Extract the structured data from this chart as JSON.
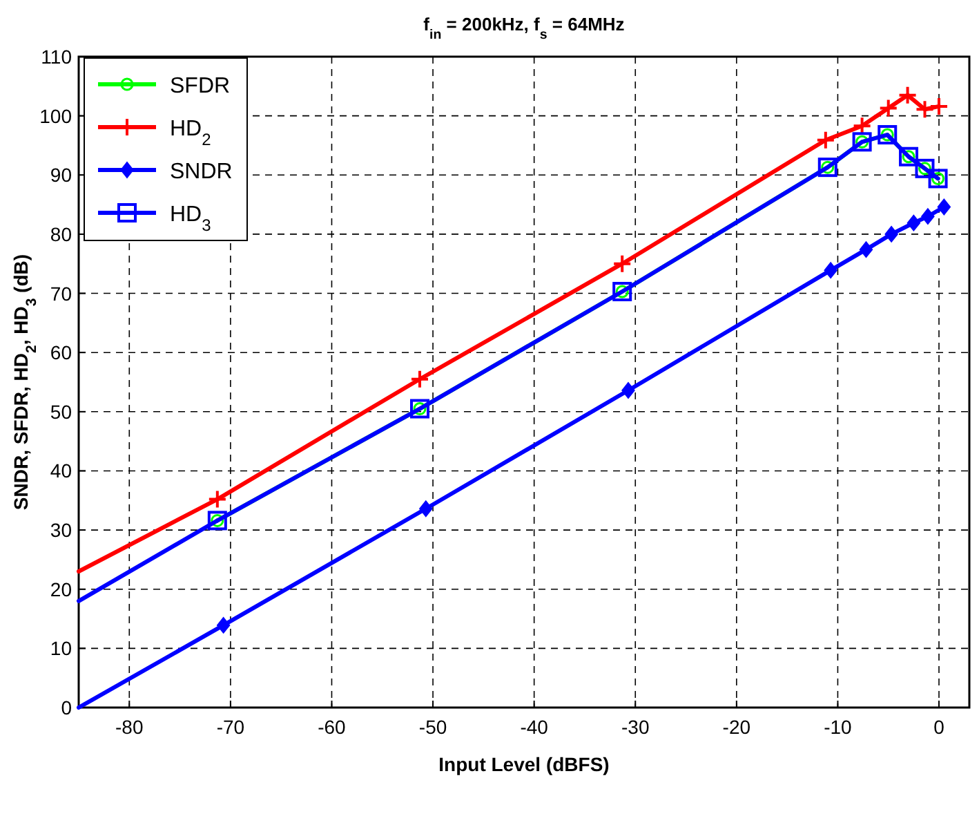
{
  "chart_data": {
    "type": "line",
    "title": "f$_{in}$ = 200kHz, f$_{s}$ = 64MHz",
    "xlabel": "Input Level (dBFS)",
    "ylabel": "SNDR, SFDR, HD$_{2}$, HD$_{3}$ (dB)",
    "xlim": [
      -85,
      3
    ],
    "xticks": [
      -80,
      -70,
      -60,
      -50,
      -40,
      -30,
      -20,
      -10,
      0
    ],
    "ylim": [
      0,
      110
    ],
    "yticks": [
      0,
      10,
      20,
      30,
      40,
      50,
      60,
      70,
      80,
      90,
      100,
      110
    ],
    "grid": true,
    "legend": "top left",
    "line_style": "solid",
    "series": [
      {
        "name": "SFDR",
        "color": "#00ff00",
        "marker": "circle",
        "x": [
          -71.3,
          -51.3,
          -31.3,
          -11,
          -7.6,
          -5.1,
          -3,
          -1.4,
          -0.1
        ],
        "values": [
          31.6,
          50.5,
          70.3,
          91.3,
          95.6,
          96.8,
          93.1,
          91.1,
          89.4
        ]
      },
      {
        "name": "HD$_{2}$",
        "color": "#ff0000",
        "marker": "cross",
        "x": [
          -71.3,
          -51.3,
          -31.3,
          -11.2,
          -7.6,
          -5,
          -3.1,
          -1.4,
          0
        ],
        "values": [
          35.2,
          55.5,
          75,
          95.9,
          98.3,
          101.3,
          103.5,
          101.1,
          101.6
        ]
      },
      {
        "name": "SNDR",
        "color": "#0000ff",
        "marker": "diamond",
        "x": [
          -70.7,
          -50.7,
          -30.7,
          -10.7,
          -7.2,
          -4.7,
          -2.5,
          -1.1,
          0.5
        ],
        "values": [
          13.9,
          33.6,
          53.6,
          73.9,
          77.4,
          80,
          81.9,
          83,
          84.6
        ]
      },
      {
        "name": "HD$_{3}$",
        "color": "#0000ff",
        "marker": "square",
        "x": [
          -71.3,
          -51.3,
          -31.3,
          -11,
          -7.6,
          -5.1,
          -3,
          -1.4,
          -0.1
        ],
        "values": [
          31.6,
          50.5,
          70.3,
          91.3,
          95.6,
          96.8,
          93.1,
          91.1,
          89.4
        ]
      },
      {
        "color": "#ff0000",
        "marker": "none",
        "x": [
          -85,
          -71.3
        ],
        "values": [
          23,
          35.2
        ]
      },
      {
        "color": "#0000ff",
        "marker": "none",
        "x": [
          -85,
          -71.3
        ],
        "values": [
          18,
          31.6
        ]
      },
      {
        "color": "#0000ff",
        "marker": "none",
        "x": [
          -85,
          -70.7
        ],
        "values": [
          0,
          13.9
        ]
      }
    ]
  }
}
